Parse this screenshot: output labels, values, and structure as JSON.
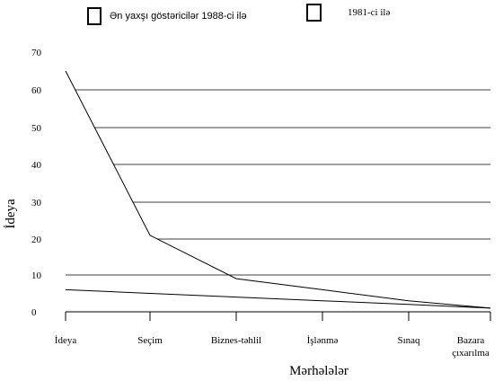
{
  "chart_data": {
    "type": "line",
    "xlabel": "Mərhələlər",
    "ylabel": "İdeya",
    "ylim": [
      0,
      70
    ],
    "yticks": [
      "0",
      "10",
      "20",
      "30",
      "40",
      "50",
      "60",
      "70"
    ],
    "categories": [
      "İdeya",
      "Seçim",
      "Biznes-təhlil",
      "İşlənmə",
      "Sınaq",
      "Bazara çıxarılma"
    ],
    "legend": {
      "placement": "top",
      "entries": [
        "Ən yaxşı göstəricilər 1988-ci ilə",
        "1981-ci ilə"
      ]
    },
    "series": [
      {
        "name": "1981-ci ilə",
        "values": [
          65,
          21,
          9,
          6,
          3,
          1
        ],
        "color": "#000000"
      },
      {
        "name": "Ən yaxşı göstəricilər 1988-ci ilə",
        "values": [
          6,
          5,
          4,
          3,
          2,
          1
        ],
        "color": "#000000"
      }
    ]
  }
}
